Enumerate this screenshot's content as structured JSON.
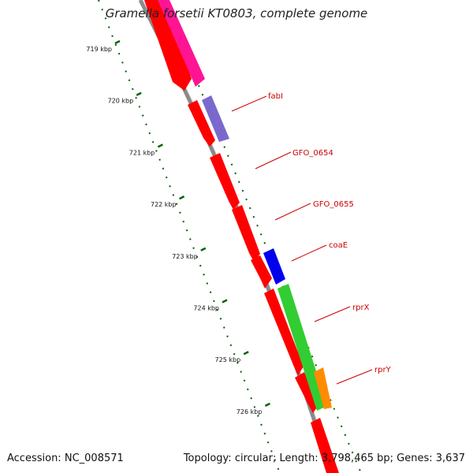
{
  "title": "Gramella forsetii KT0803, complete genome",
  "footer": {
    "accession_label": "Accession:",
    "accession": "NC_008571",
    "topology_label": "Topology:",
    "topology": "circular;",
    "length_label": "Length:",
    "length": "3,798,465 bp;",
    "genes_label": "Genes:",
    "genes": "3,637"
  },
  "ruler": {
    "ticks": [
      "719 kbp",
      "720 kbp",
      "721 kbp",
      "722 kbp",
      "723 kbp",
      "724 kbp",
      "725 kbp",
      "726 kbp"
    ]
  },
  "colors": {
    "backbone": "#8a8a8a",
    "tick": "#006400",
    "label": "#cc0000",
    "red_gene": "#ff0000",
    "pink_gene": "#ff1493",
    "purple_gene": "#7b68cc",
    "blue_gene": "#0000ee",
    "green_gene": "#32cd32",
    "orange_gene": "#ff8c00"
  },
  "genes": [
    {
      "label": "fabI",
      "color": "purple_gene"
    },
    {
      "label": "GFO_0654",
      "color": "red_gene"
    },
    {
      "label": "GFO_0655",
      "color": "red_gene"
    },
    {
      "label": "coaE",
      "color": "blue_gene"
    },
    {
      "label": "rprX",
      "color": "green_gene"
    },
    {
      "label": "rprY",
      "color": "orange_gene"
    }
  ]
}
